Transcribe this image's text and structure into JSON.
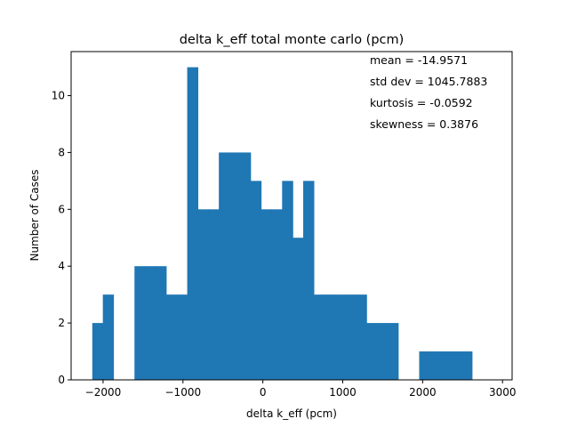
{
  "chart_data": {
    "type": "bar",
    "title": "delta k_eff total monte carlo (pcm)",
    "xlabel": "delta k_eff (pcm)",
    "ylabel": "Number of Cases",
    "xlim": [
      -2400,
      3120
    ],
    "ylim": [
      0,
      11.55
    ],
    "x_ticks": [
      -2000,
      -1000,
      0,
      1000,
      2000,
      3000
    ],
    "y_ticks": [
      0,
      2,
      4,
      6,
      8,
      10
    ],
    "bar_color": "#1f77b4",
    "bin_width": 132,
    "bins": [
      {
        "x": -2135,
        "value": 2
      },
      {
        "x": -2003,
        "value": 3
      },
      {
        "x": -1871,
        "value": 0
      },
      {
        "x": -1739,
        "value": 0
      },
      {
        "x": -1607,
        "value": 4
      },
      {
        "x": -1475,
        "value": 4
      },
      {
        "x": -1343,
        "value": 4
      },
      {
        "x": -1211,
        "value": 3
      },
      {
        "x": -1079,
        "value": 3
      },
      {
        "x": -947,
        "value": 11
      },
      {
        "x": -815,
        "value": 6
      },
      {
        "x": -683,
        "value": 6
      },
      {
        "x": -551,
        "value": 8
      },
      {
        "x": -419,
        "value": 8
      },
      {
        "x": -287,
        "value": 8
      },
      {
        "x": -155,
        "value": 7
      },
      {
        "x": -23,
        "value": 6
      },
      {
        "x": 109,
        "value": 6
      },
      {
        "x": 241,
        "value": 7
      },
      {
        "x": 373,
        "value": 5
      },
      {
        "x": 505,
        "value": 7
      },
      {
        "x": 637,
        "value": 3
      },
      {
        "x": 769,
        "value": 3
      },
      {
        "x": 901,
        "value": 3
      },
      {
        "x": 1033,
        "value": 3
      },
      {
        "x": 1165,
        "value": 3
      },
      {
        "x": 1297,
        "value": 2
      },
      {
        "x": 1429,
        "value": 2
      },
      {
        "x": 1561,
        "value": 2
      },
      {
        "x": 1693,
        "value": 0
      },
      {
        "x": 1825,
        "value": 0
      },
      {
        "x": 1957,
        "value": 1
      },
      {
        "x": 2089,
        "value": 1
      },
      {
        "x": 2221,
        "value": 1
      },
      {
        "x": 2353,
        "value": 1
      },
      {
        "x": 2485,
        "value": 1
      }
    ],
    "annotations": [
      "mean = -14.9571",
      "std dev = 1045.7883",
      "kurtosis = -0.0592",
      "skewness = 0.3876"
    ]
  }
}
